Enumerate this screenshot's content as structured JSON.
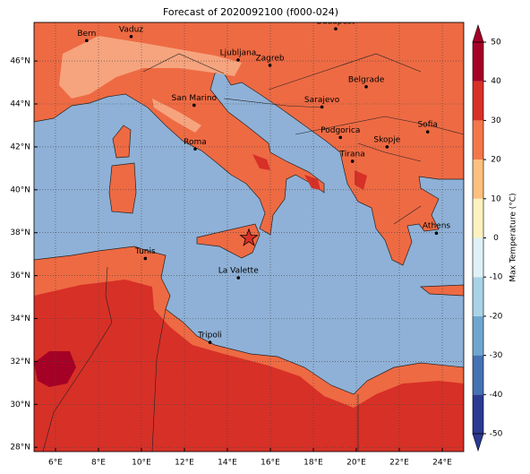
{
  "chart_data": {
    "type": "map",
    "title": "Forecast of 2020092100 (f000-024)",
    "xlim": [
      5,
      25
    ],
    "ylim": [
      27.8,
      47.8
    ],
    "xticks": [
      {
        "value": 6,
        "label": "6°E"
      },
      {
        "value": 8,
        "label": "8°E"
      },
      {
        "value": 10,
        "label": "10°E"
      },
      {
        "value": 12,
        "label": "12°E"
      },
      {
        "value": 14,
        "label": "14°E"
      },
      {
        "value": 16,
        "label": "16°E"
      },
      {
        "value": 18,
        "label": "18°E"
      },
      {
        "value": 20,
        "label": "20°E"
      },
      {
        "value": 22,
        "label": "22°E"
      },
      {
        "value": 24,
        "label": "24°E"
      }
    ],
    "yticks": [
      {
        "value": 28,
        "label": "28°N"
      },
      {
        "value": 30,
        "label": "30°N"
      },
      {
        "value": 32,
        "label": "32°N"
      },
      {
        "value": 34,
        "label": "34°N"
      },
      {
        "value": 36,
        "label": "36°N"
      },
      {
        "value": 38,
        "label": "38°N"
      },
      {
        "value": 40,
        "label": "40°N"
      },
      {
        "value": 42,
        "label": "42°N"
      },
      {
        "value": 44,
        "label": "44°N"
      },
      {
        "value": 46,
        "label": "46°N"
      }
    ],
    "grid": true,
    "cities": [
      {
        "name": "Bern",
        "lon": 7.45,
        "lat": 46.95
      },
      {
        "name": "Vaduz",
        "lon": 9.52,
        "lat": 47.14
      },
      {
        "name": "Budapest",
        "lon": 19.04,
        "lat": 47.5
      },
      {
        "name": "Ljubljana",
        "lon": 14.5,
        "lat": 46.05
      },
      {
        "name": "Zagreb",
        "lon": 15.98,
        "lat": 45.8
      },
      {
        "name": "Belgrade",
        "lon": 20.46,
        "lat": 44.8
      },
      {
        "name": "San Marino",
        "lon": 12.45,
        "lat": 43.94
      },
      {
        "name": "Sarajevo",
        "lon": 18.4,
        "lat": 43.86
      },
      {
        "name": "Roma",
        "lon": 12.5,
        "lat": 41.9
      },
      {
        "name": "Podgorica",
        "lon": 19.26,
        "lat": 42.44
      },
      {
        "name": "Sofia",
        "lon": 23.32,
        "lat": 42.7
      },
      {
        "name": "Skopje",
        "lon": 21.43,
        "lat": 42.0
      },
      {
        "name": "Tirana",
        "lon": 19.82,
        "lat": 41.33
      },
      {
        "name": "Athens",
        "lon": 23.73,
        "lat": 37.98
      },
      {
        "name": "Tunis",
        "lon": 10.18,
        "lat": 36.8
      },
      {
        "name": "La Valette",
        "lon": 14.51,
        "lat": 35.9
      },
      {
        "name": "Tripoli",
        "lon": 13.19,
        "lat": 32.89
      }
    ],
    "star": {
      "lon": 15.0,
      "lat": 37.75
    },
    "colorbar": {
      "label": "Max Temperature (°C)",
      "extend": "both",
      "ticks": [
        -50,
        -40,
        -30,
        -20,
        -10,
        0,
        10,
        20,
        30,
        40,
        50
      ],
      "colors": [
        "#2b3a92",
        "#4472b2",
        "#6fa6cf",
        "#a8d2e6",
        "#def1f6",
        "#fdf2bf",
        "#fdc07e",
        "#f4774a",
        "#d73027",
        "#a50026"
      ]
    }
  }
}
